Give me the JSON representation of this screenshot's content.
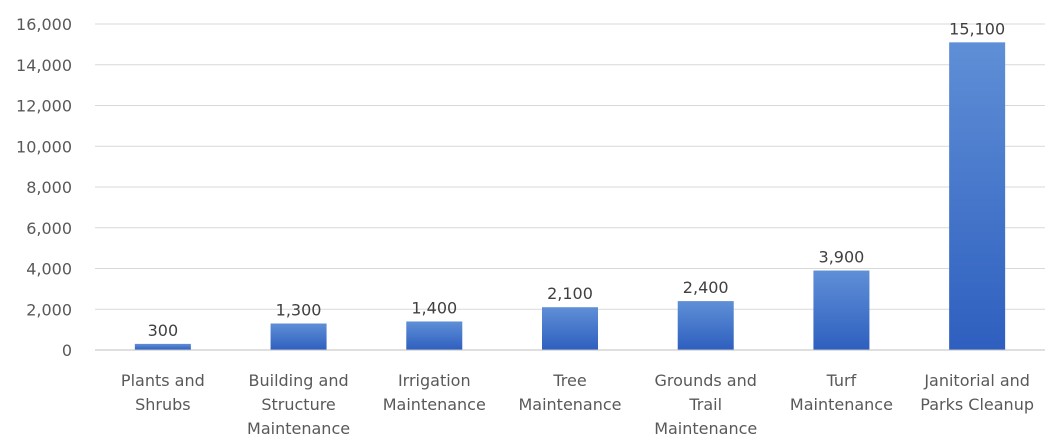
{
  "chart_data": {
    "type": "bar",
    "title": "",
    "xlabel": "",
    "ylabel": "",
    "categories": [
      [
        "Plants and",
        "Shrubs"
      ],
      [
        "Building and",
        "Structure",
        "Maintenance"
      ],
      [
        "Irrigation",
        "Maintenance"
      ],
      [
        "Tree",
        "Maintenance"
      ],
      [
        "Grounds and",
        "Trail",
        "Maintenance"
      ],
      [
        "Turf",
        "Maintenance"
      ],
      [
        "Janitorial and",
        "Parks Cleanup"
      ]
    ],
    "values": [
      300,
      1300,
      1400,
      2100,
      2400,
      3900,
      15100
    ],
    "data_labels": [
      "300",
      "1,300",
      "1,400",
      "2,100",
      "2,400",
      "3,900",
      "15,100"
    ],
    "ylim": [
      0,
      16000
    ],
    "yticks": [
      0,
      2000,
      4000,
      6000,
      8000,
      10000,
      12000,
      14000,
      16000
    ],
    "ytick_labels": [
      "0",
      "2,000",
      "4,000",
      "6,000",
      "8,000",
      "10,000",
      "12,000",
      "14,000",
      "16,000"
    ],
    "grid": true,
    "legend": "none",
    "colors": {
      "bar_top": "#5f8fd6",
      "bar_bottom": "#2e5fbf"
    }
  }
}
